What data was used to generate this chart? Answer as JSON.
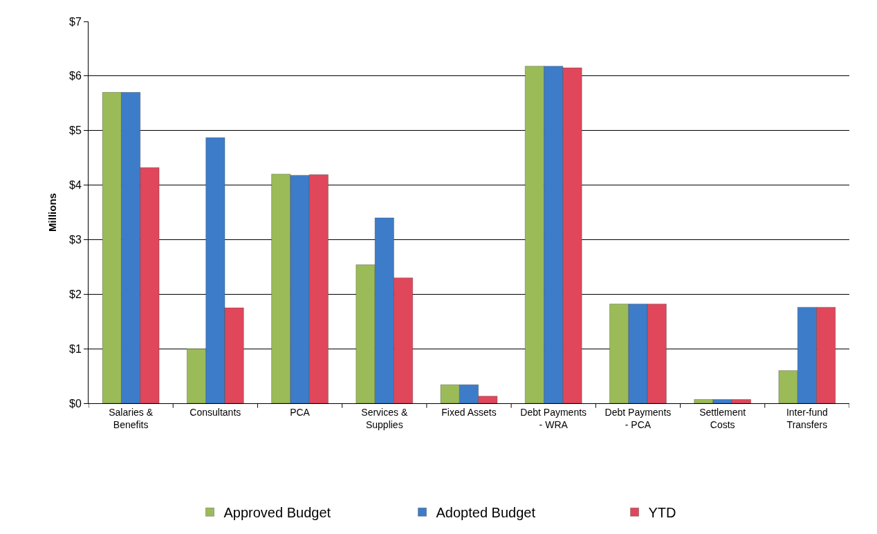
{
  "chart_data": {
    "type": "bar",
    "ylabel": "Millions",
    "categories": [
      "Salaries & Benefits",
      "Consultants",
      "PCA",
      "Services & Supplies",
      "Fixed Assets",
      "Debt Payments - WRA",
      "Debt Payments - PCA",
      "Settlement Costs",
      "Inter-fund Transfers"
    ],
    "series": [
      {
        "name": "Approved Budget",
        "color": "#9bbb59",
        "values": [
          5.7,
          1.0,
          4.2,
          2.54,
          0.34,
          6.18,
          1.82,
          0.07,
          0.6
        ]
      },
      {
        "name": "Adopted Budget",
        "color": "#3d7cc9",
        "values": [
          5.7,
          4.87,
          4.18,
          3.4,
          0.34,
          6.18,
          1.82,
          0.07,
          1.76
        ]
      },
      {
        "name": "YTD",
        "color": "#e0475b",
        "values": [
          4.32,
          1.75,
          4.19,
          2.3,
          0.13,
          6.15,
          1.82,
          0.07,
          1.76
        ]
      }
    ],
    "ylim": [
      0,
      7
    ],
    "yticks": [
      {
        "value": 0,
        "label": "$0"
      },
      {
        "value": 1,
        "label": "$1"
      },
      {
        "value": 2,
        "label": "$2"
      },
      {
        "value": 3,
        "label": "$3"
      },
      {
        "value": 4,
        "label": "$4"
      },
      {
        "value": 5,
        "label": "$5"
      },
      {
        "value": 6,
        "label": "$6"
      },
      {
        "value": 7,
        "label": "$7"
      }
    ],
    "grid": "y",
    "legend": "bottom"
  }
}
